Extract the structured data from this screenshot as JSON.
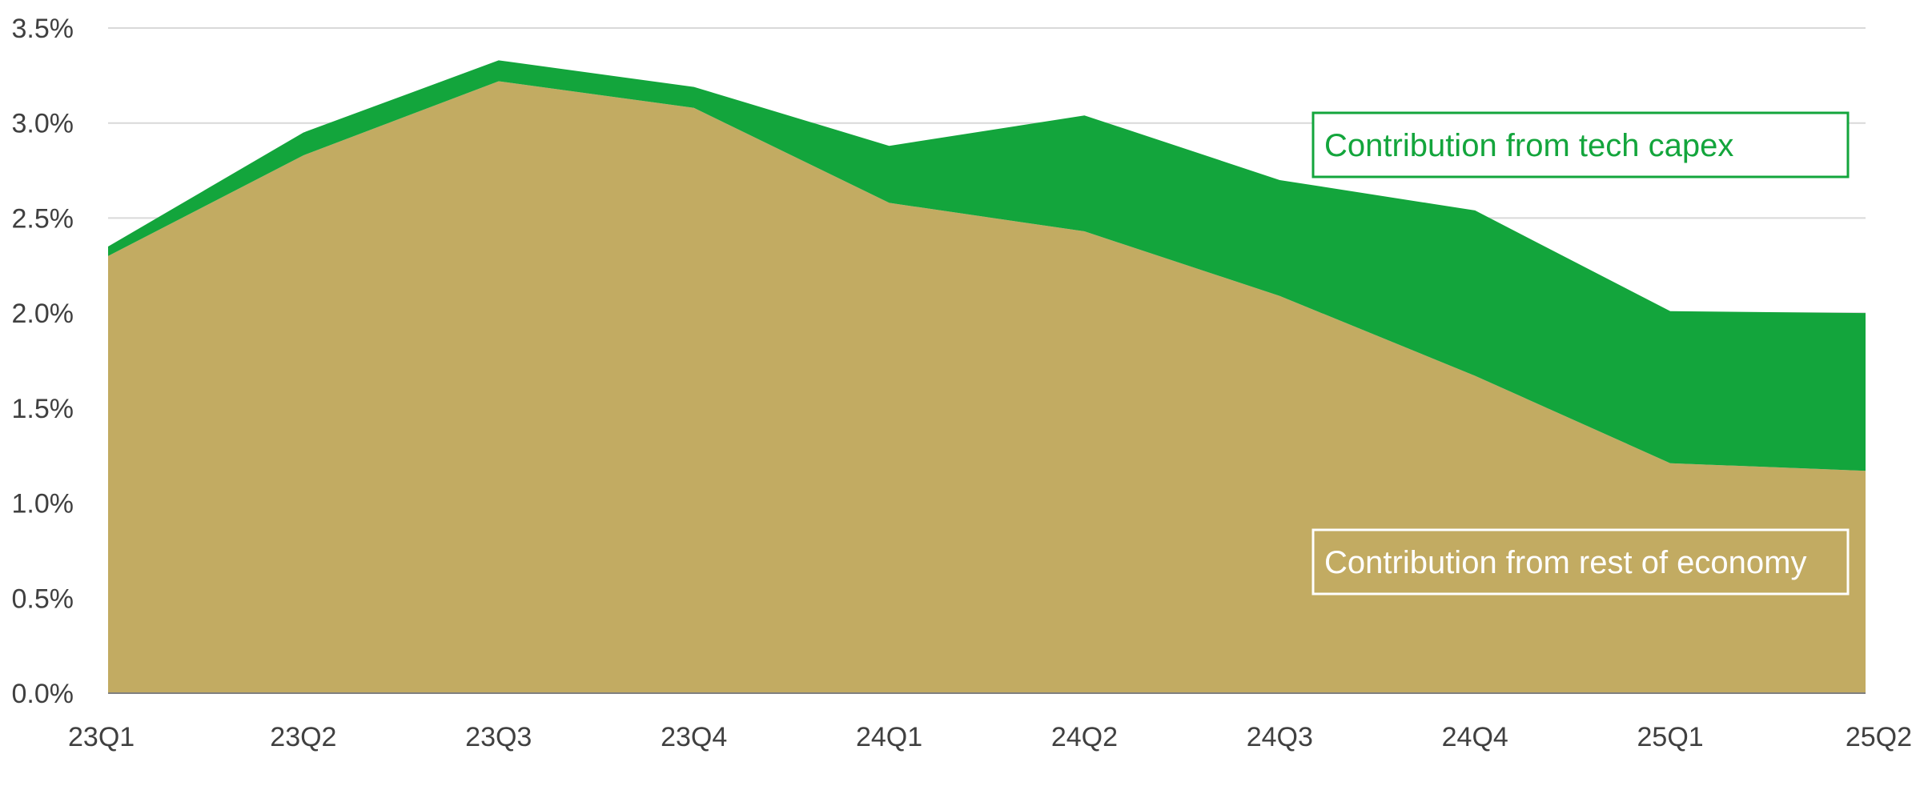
{
  "chart_data": {
    "type": "area",
    "stacked": true,
    "categories": [
      "23Q1",
      "23Q2",
      "23Q3",
      "23Q4",
      "24Q1",
      "24Q2",
      "24Q3",
      "24Q4",
      "25Q1",
      "25Q2"
    ],
    "series": [
      {
        "name": "Contribution from rest of economy",
        "values": [
          2.3,
          2.83,
          3.22,
          3.08,
          2.58,
          2.43,
          2.09,
          1.67,
          1.21,
          1.17
        ],
        "color": "#c2ab62"
      },
      {
        "name": "Contribution from tech capex",
        "values": [
          0.05,
          0.12,
          0.11,
          0.11,
          0.3,
          0.61,
          0.61,
          0.87,
          0.8,
          0.83
        ],
        "color": "#13a53c"
      }
    ],
    "y_ticks": [
      "0.0%",
      "0.5%",
      "1.0%",
      "1.5%",
      "2.0%",
      "2.5%",
      "3.0%",
      "3.5%"
    ],
    "ylim": [
      0,
      3.5
    ],
    "grid": true,
    "title": "",
    "xlabel": "",
    "ylabel": "",
    "annotations": [
      {
        "text": "Contribution from tech capex",
        "text_color": "#13a53c",
        "border_color": "#13a53c",
        "background": "#ffffff"
      },
      {
        "text": "Contribution from rest of economy",
        "text_color": "#ffffff",
        "border_color": "#ffffff",
        "background": "transparent"
      }
    ],
    "colors": {
      "grid": "#d9d9d9",
      "axis": "#7f7f7f",
      "tick_text": "#404040"
    }
  }
}
